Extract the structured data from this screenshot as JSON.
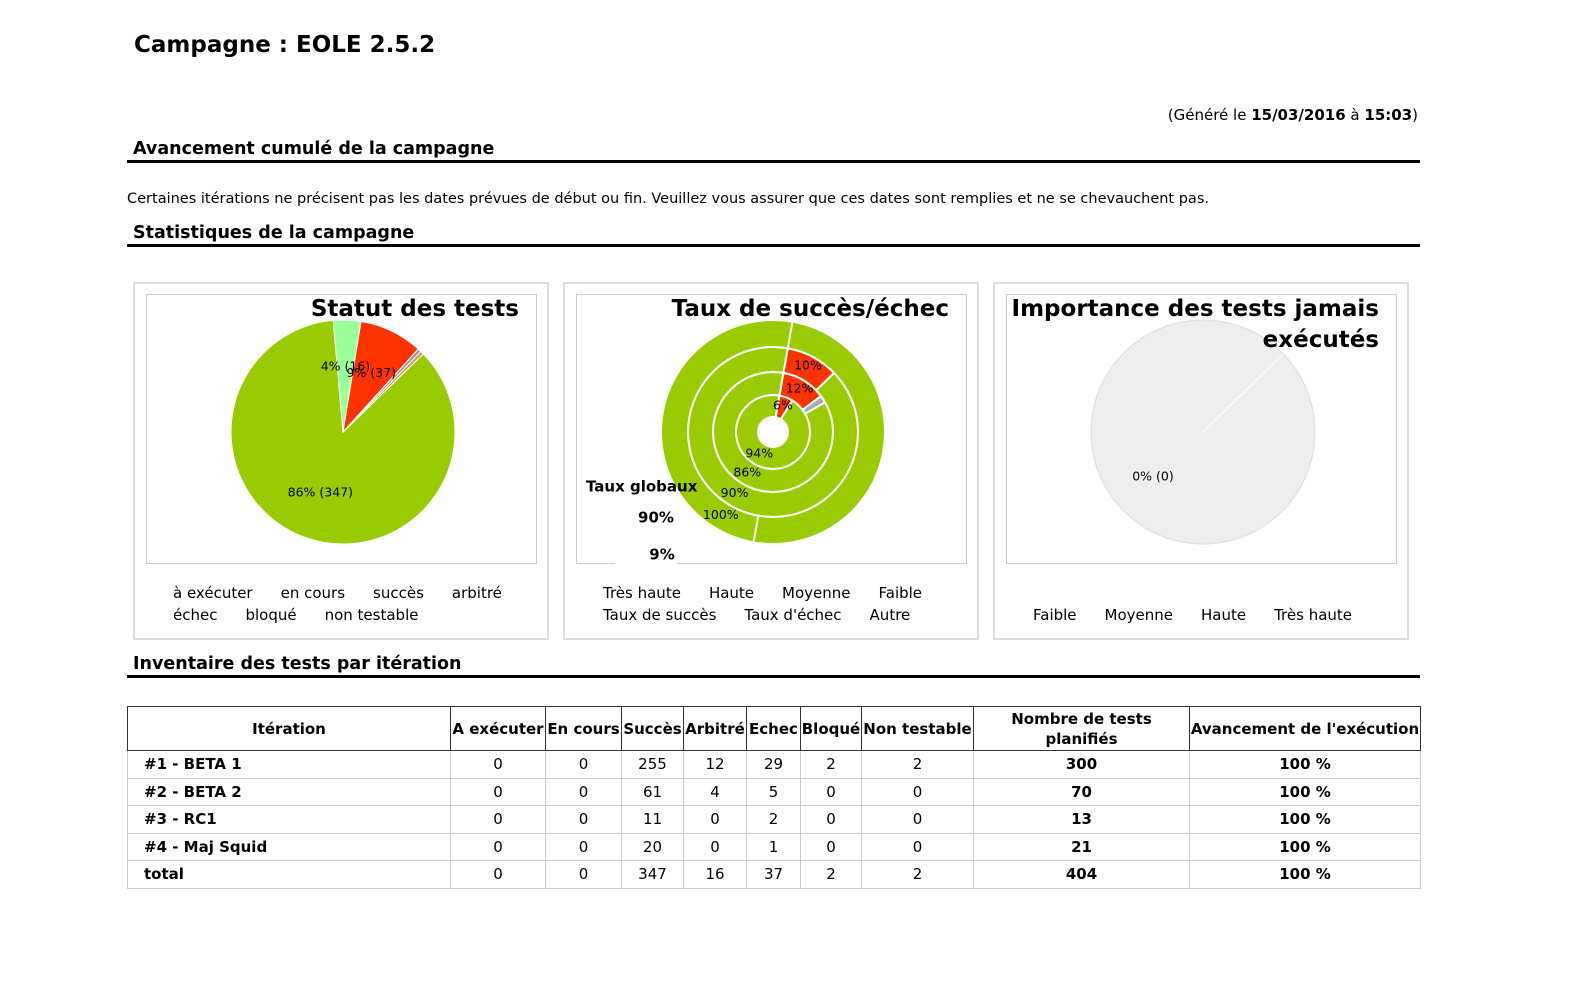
{
  "header": {
    "title": "Campagne : EOLE 2.5.2",
    "generated_prefix": "(Généré le ",
    "date": "15/03/2016",
    "at": " à ",
    "time": "15:03",
    "generated_suffix": ")"
  },
  "sections": {
    "progress": "Avancement cumulé de la campagne",
    "notice": "Certaines itérations ne précisent pas les dates prévues de début ou fin. Veuillez vous assurer que ces dates sont remplies et ne se chevauchent pas.",
    "statistics": "Statistiques de la campagne",
    "inventory": "Inventaire des tests par itération"
  },
  "charts": [
    {
      "type": "pie",
      "title": "Statut des tests",
      "categories": [
        "à exécuter",
        "en cours",
        "succès",
        "arbitré",
        "échec",
        "bloqué",
        "non testable"
      ],
      "values": [
        0,
        0,
        347,
        16,
        37,
        2,
        2
      ],
      "value_labels": [
        null,
        null,
        "86% (347)",
        "4% (16)",
        "9% (37)",
        null,
        null
      ],
      "colors": [
        "#dddddd",
        "#ffcc00",
        "#99cc00",
        "#99ff99",
        "#ff3300",
        "#999999",
        "#cc9966"
      ]
    },
    {
      "type": "rings",
      "title": "Taux de succès/échec",
      "series": [
        {
          "name": "Taux de succès",
          "color": "#99cc00"
        },
        {
          "name": "Taux d'échec",
          "color": "#ff3300"
        },
        {
          "name": "Autre",
          "color": "#aaaaaa"
        }
      ],
      "rings": [
        {
          "name": "Très haute",
          "values": [
            94,
            6,
            0
          ],
          "value_labels": [
            "94%",
            "6%",
            null
          ]
        },
        {
          "name": "Haute",
          "values": [
            86,
            12,
            2
          ],
          "value_labels": [
            "86%",
            "12%",
            null
          ]
        },
        {
          "name": "Moyenne",
          "values": [
            90,
            10,
            0
          ],
          "value_labels": [
            "90%",
            "10%",
            null
          ]
        },
        {
          "name": "Faible",
          "values": [
            100,
            0,
            0
          ],
          "value_labels": [
            "100%",
            null,
            null
          ]
        }
      ],
      "global": {
        "label": "Taux globaux",
        "values": [
          90,
          9
        ],
        "value_labels": [
          "90%",
          "9%"
        ]
      }
    },
    {
      "type": "pie",
      "title": "Importance des tests jamais exécutés",
      "categories": [
        "Faible",
        "Moyenne",
        "Haute",
        "Très haute"
      ],
      "values": [
        0,
        0,
        0,
        0
      ],
      "colors": [
        "#99cc00",
        "#ffcc00",
        "#ff9900",
        "#ff3300"
      ],
      "label": "0% (0)"
    }
  ],
  "table": {
    "columns": [
      "Itération",
      "A exécuter",
      "En cours",
      "Succès",
      "Arbitré",
      "Echec",
      "Bloqué",
      "Non testable",
      "Nombre de tests planifiés",
      "Avancement de l'exécution"
    ],
    "rows": [
      [
        "#1 - BETA 1",
        0,
        0,
        255,
        12,
        29,
        2,
        2,
        300,
        "100 %"
      ],
      [
        "#2 - BETA 2",
        0,
        0,
        61,
        4,
        5,
        0,
        0,
        70,
        "100 %"
      ],
      [
        "#3 - RC1",
        0,
        0,
        11,
        0,
        2,
        0,
        0,
        13,
        "100 %"
      ],
      [
        "#4 - Maj Squid",
        0,
        0,
        20,
        0,
        1,
        0,
        0,
        21,
        "100 %"
      ],
      [
        "total",
        0,
        0,
        347,
        16,
        37,
        2,
        2,
        404,
        "100 %"
      ]
    ]
  }
}
